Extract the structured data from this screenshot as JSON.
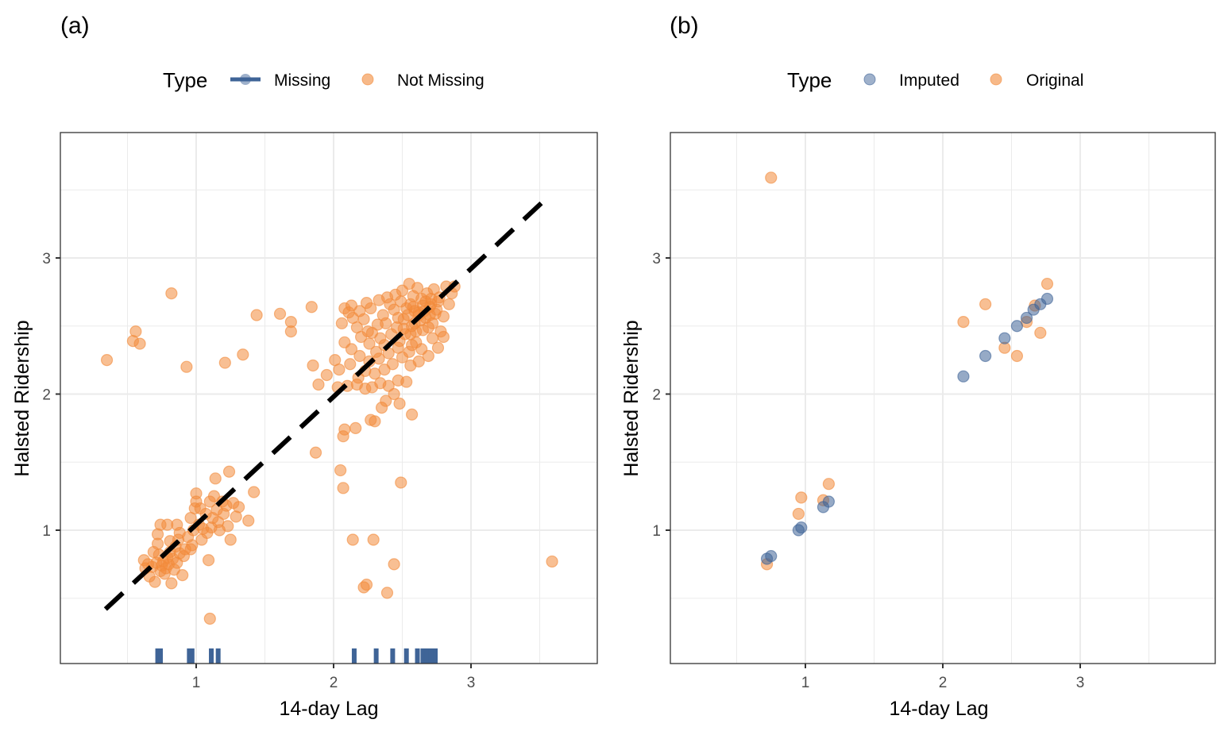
{
  "colors": {
    "missing": "#3f6497",
    "not_missing": "#f28b3b",
    "imputed": "#3f6497",
    "original": "#f28b3b",
    "reference_line": "#000000"
  },
  "chart_data": [
    {
      "panel_label": "(a)",
      "type": "scatter",
      "title": "",
      "xlabel": "14-day Lag",
      "ylabel": "Halsted Ridership",
      "xlim": [
        0.16,
        3.86
      ],
      "ylim": [
        0.03,
        3.92
      ],
      "x_ticks": [
        1,
        2,
        3
      ],
      "y_ticks": [
        1,
        2,
        3
      ],
      "x_tick_labels": [
        "1",
        "2",
        "3"
      ],
      "y_tick_labels": [
        "1",
        "2",
        "3"
      ],
      "grid": true,
      "legend": {
        "title": "Type",
        "position": "top",
        "entries": [
          {
            "label": "Missing",
            "key": "line-point",
            "color": "#3f6497"
          },
          {
            "label": "Not Missing",
            "key": "point",
            "color": "#f28b3b"
          }
        ]
      },
      "reference_line": {
        "style": "dashed",
        "x": [
          0.34,
          3.52
        ],
        "y": [
          0.42,
          3.41
        ]
      },
      "rug_missing_x": [
        0.72,
        0.74,
        0.95,
        0.97,
        1.11,
        1.16,
        2.15,
        2.31,
        2.43,
        2.53,
        2.61,
        2.65,
        2.68,
        2.71,
        2.74
      ],
      "series": [
        {
          "name": "Not Missing",
          "points": [
            [
              0.35,
              2.25
            ],
            [
              0.54,
              2.39
            ],
            [
              0.56,
              2.46
            ],
            [
              0.59,
              2.37
            ],
            [
              0.82,
              2.74
            ],
            [
              0.93,
              2.2
            ],
            [
              1.21,
              2.23
            ],
            [
              1.34,
              2.29
            ],
            [
              1.44,
              2.58
            ],
            [
              1.61,
              2.59
            ],
            [
              1.69,
              2.53
            ],
            [
              1.69,
              2.46
            ],
            [
              1.84,
              2.64
            ],
            [
              1.85,
              2.21
            ],
            [
              1.89,
              2.07
            ],
            [
              1.95,
              2.14
            ],
            [
              1.87,
              1.57
            ],
            [
              2.05,
              1.44
            ],
            [
              2.07,
              1.31
            ],
            [
              2.07,
              1.69
            ],
            [
              2.08,
              1.74
            ],
            [
              2.14,
              0.93
            ],
            [
              2.22,
              0.58
            ],
            [
              2.24,
              0.6
            ],
            [
              2.29,
              0.93
            ],
            [
              2.39,
              0.54
            ],
            [
              2.44,
              0.75
            ],
            [
              2.49,
              1.35
            ],
            [
              2.16,
              1.75
            ],
            [
              2.27,
              1.81
            ],
            [
              2.3,
              1.8
            ],
            [
              2.35,
              1.9
            ],
            [
              2.38,
              1.95
            ],
            [
              2.44,
              2.0
            ],
            [
              2.48,
              1.93
            ],
            [
              2.57,
              1.85
            ],
            [
              2.03,
              2.05
            ],
            [
              2.1,
              2.06
            ],
            [
              2.17,
              2.07
            ],
            [
              2.23,
              2.04
            ],
            [
              2.28,
              2.05
            ],
            [
              2.34,
              2.08
            ],
            [
              2.4,
              2.06
            ],
            [
              2.47,
              2.1
            ],
            [
              2.53,
              2.09
            ],
            [
              2.01,
              2.25
            ],
            [
              2.04,
              2.18
            ],
            [
              2.12,
              2.22
            ],
            [
              2.19,
              2.28
            ],
            [
              2.23,
              2.17
            ],
            [
              2.3,
              2.15
            ],
            [
              2.37,
              2.18
            ],
            [
              2.43,
              2.22
            ],
            [
              2.5,
              2.27
            ],
            [
              2.56,
              2.21
            ],
            [
              2.08,
              2.38
            ],
            [
              2.13,
              2.33
            ],
            [
              2.2,
              2.42
            ],
            [
              2.26,
              2.37
            ],
            [
              2.31,
              2.31
            ],
            [
              2.37,
              2.36
            ],
            [
              2.42,
              2.44
            ],
            [
              2.48,
              2.39
            ],
            [
              2.55,
              2.31
            ],
            [
              2.6,
              2.38
            ],
            [
              2.64,
              2.33
            ],
            [
              2.06,
              2.52
            ],
            [
              2.11,
              2.6
            ],
            [
              2.17,
              2.49
            ],
            [
              2.22,
              2.55
            ],
            [
              2.27,
              2.63
            ],
            [
              2.32,
              2.51
            ],
            [
              2.36,
              2.58
            ],
            [
              2.41,
              2.66
            ],
            [
              2.46,
              2.49
            ],
            [
              2.51,
              2.55
            ],
            [
              2.53,
              2.63
            ],
            [
              2.56,
              2.44
            ],
            [
              2.59,
              2.52
            ],
            [
              2.62,
              2.6
            ],
            [
              2.65,
              2.47
            ],
            [
              2.67,
              2.56
            ],
            [
              2.7,
              2.64
            ],
            [
              2.72,
              2.52
            ],
            [
              2.74,
              2.59
            ],
            [
              2.76,
              2.68
            ],
            [
              2.78,
              2.46
            ],
            [
              2.8,
              2.57
            ],
            [
              2.08,
              2.63
            ],
            [
              2.13,
              2.65
            ],
            [
              2.24,
              2.67
            ],
            [
              2.33,
              2.69
            ],
            [
              2.39,
              2.71
            ],
            [
              2.45,
              2.73
            ],
            [
              2.5,
              2.76
            ],
            [
              2.55,
              2.81
            ],
            [
              2.58,
              2.72
            ],
            [
              2.61,
              2.78
            ],
            [
              2.64,
              2.7
            ],
            [
              2.68,
              2.74
            ],
            [
              2.71,
              2.66
            ],
            [
              2.73,
              2.77
            ],
            [
              2.77,
              2.71
            ],
            [
              2.82,
              2.79
            ],
            [
              2.86,
              2.74
            ],
            [
              2.88,
              2.79
            ],
            [
              2.84,
              2.66
            ],
            [
              2.8,
              2.42
            ],
            [
              2.76,
              2.34
            ],
            [
              2.69,
              2.28
            ],
            [
              2.62,
              2.24
            ],
            [
              2.57,
              2.36
            ],
            [
              2.52,
              2.44
            ],
            [
              2.47,
              2.56
            ],
            [
              2.44,
              2.62
            ],
            [
              2.49,
              2.68
            ],
            [
              2.58,
              2.64
            ],
            [
              2.63,
              2.54
            ],
            [
              2.66,
              2.61
            ],
            [
              2.69,
              2.49
            ],
            [
              2.72,
              2.41
            ],
            [
              2.75,
              2.62
            ],
            [
              2.6,
              2.46
            ],
            [
              2.54,
              2.58
            ],
            [
              2.67,
              2.68
            ],
            [
              2.57,
              2.5
            ],
            [
              2.62,
              2.58
            ],
            [
              2.7,
              2.58
            ],
            [
              2.65,
              2.65
            ],
            [
              2.59,
              2.61
            ],
            [
              2.71,
              2.7
            ],
            [
              2.56,
              2.66
            ],
            [
              2.18,
              2.12
            ],
            [
              2.26,
              2.24
            ],
            [
              2.33,
              2.26
            ],
            [
              2.4,
              2.3
            ],
            [
              2.28,
              2.45
            ],
            [
              2.34,
              2.41
            ],
            [
              2.14,
              2.56
            ],
            [
              2.19,
              2.61
            ],
            [
              2.25,
              2.46
            ],
            [
              2.47,
              2.34
            ],
            [
              2.38,
              2.52
            ],
            [
              2.51,
              2.48
            ],
            [
              0.62,
              0.78
            ],
            [
              0.63,
              0.72
            ],
            [
              0.66,
              0.66
            ],
            [
              0.68,
              0.73
            ],
            [
              0.7,
              0.62
            ],
            [
              0.71,
              0.76
            ],
            [
              0.72,
              0.9
            ],
            [
              0.73,
              0.82
            ],
            [
              0.74,
              0.7
            ],
            [
              0.75,
              0.74
            ],
            [
              0.76,
              0.77
            ],
            [
              0.77,
              0.68
            ],
            [
              0.78,
              0.72
            ],
            [
              0.79,
              0.8
            ],
            [
              0.8,
              0.75
            ],
            [
              0.81,
              0.84
            ],
            [
              0.82,
              0.61
            ],
            [
              0.83,
              0.79
            ],
            [
              0.84,
              0.71
            ],
            [
              0.85,
              0.88
            ],
            [
              0.86,
              0.76
            ],
            [
              0.87,
              0.93
            ],
            [
              0.88,
              0.83
            ],
            [
              0.9,
              0.67
            ],
            [
              0.91,
              0.81
            ],
            [
              0.92,
              0.86
            ],
            [
              0.72,
              0.97
            ],
            [
              0.74,
              1.04
            ],
            [
              0.79,
              1.04
            ],
            [
              0.86,
              1.04
            ],
            [
              0.88,
              0.98
            ],
            [
              0.94,
              0.95
            ],
            [
              0.96,
              1.09
            ],
            [
              0.97,
              0.89
            ],
            [
              0.98,
              1.0
            ],
            [
              0.99,
              1.16
            ],
            [
              1.0,
              1.21
            ],
            [
              1.0,
              1.27
            ],
            [
              1.02,
              1.04
            ],
            [
              1.04,
              0.93
            ],
            [
              1.05,
              1.01
            ],
            [
              1.07,
              1.12
            ],
            [
              1.08,
              0.98
            ],
            [
              1.09,
              0.78
            ],
            [
              1.1,
              1.21
            ],
            [
              1.11,
              1.02
            ],
            [
              1.12,
              1.09
            ],
            [
              1.13,
              1.25
            ],
            [
              1.14,
              1.38
            ],
            [
              1.15,
              1.15
            ],
            [
              1.16,
              1.06
            ],
            [
              1.17,
              1.0
            ],
            [
              1.19,
              1.21
            ],
            [
              1.2,
              1.12
            ],
            [
              1.22,
              1.18
            ],
            [
              1.23,
              1.03
            ],
            [
              1.24,
              1.43
            ],
            [
              1.25,
              0.93
            ],
            [
              1.27,
              1.2
            ],
            [
              1.29,
              1.1
            ],
            [
              1.31,
              1.17
            ],
            [
              1.38,
              1.07
            ],
            [
              1.42,
              1.28
            ],
            [
              1.1,
              0.35
            ],
            [
              1.03,
              1.16
            ],
            [
              0.96,
              0.86
            ],
            [
              0.81,
              0.92
            ],
            [
              0.69,
              0.84
            ],
            [
              0.65,
              0.75
            ],
            [
              3.59,
              0.77
            ]
          ]
        }
      ]
    },
    {
      "panel_label": "(b)",
      "type": "scatter",
      "title": "",
      "xlabel": "14-day Lag",
      "ylabel": "Halsted Ridership",
      "xlim": [
        0.16,
        3.86
      ],
      "ylim": [
        0.03,
        3.92
      ],
      "x_ticks": [
        1,
        2,
        3
      ],
      "y_ticks": [
        1,
        2,
        3
      ],
      "x_tick_labels": [
        "1",
        "2",
        "3"
      ],
      "y_tick_labels": [
        "1",
        "2",
        "3"
      ],
      "grid": true,
      "legend": {
        "title": "Type",
        "position": "top",
        "entries": [
          {
            "label": "Imputed",
            "key": "point",
            "color": "#3f6497"
          },
          {
            "label": "Original",
            "key": "point",
            "color": "#f28b3b"
          }
        ]
      },
      "series": [
        {
          "name": "Original",
          "points": [
            [
              0.75,
              3.59
            ],
            [
              2.15,
              2.53
            ],
            [
              2.31,
              2.66
            ],
            [
              2.76,
              2.81
            ],
            [
              2.67,
              2.65
            ],
            [
              2.61,
              2.53
            ],
            [
              2.71,
              2.45
            ],
            [
              2.45,
              2.34
            ],
            [
              2.54,
              2.28
            ],
            [
              0.95,
              1.12
            ],
            [
              0.97,
              1.24
            ],
            [
              1.17,
              1.34
            ],
            [
              1.13,
              1.22
            ],
            [
              0.72,
              0.75
            ]
          ]
        },
        {
          "name": "Imputed",
          "points": [
            [
              2.15,
              2.13
            ],
            [
              2.31,
              2.28
            ],
            [
              2.45,
              2.41
            ],
            [
              2.54,
              2.5
            ],
            [
              2.61,
              2.56
            ],
            [
              2.66,
              2.62
            ],
            [
              2.71,
              2.66
            ],
            [
              2.76,
              2.7
            ],
            [
              0.97,
              1.02
            ],
            [
              0.95,
              1.0
            ],
            [
              1.13,
              1.17
            ],
            [
              1.17,
              1.21
            ],
            [
              0.72,
              0.79
            ],
            [
              0.75,
              0.81
            ]
          ]
        }
      ]
    }
  ]
}
